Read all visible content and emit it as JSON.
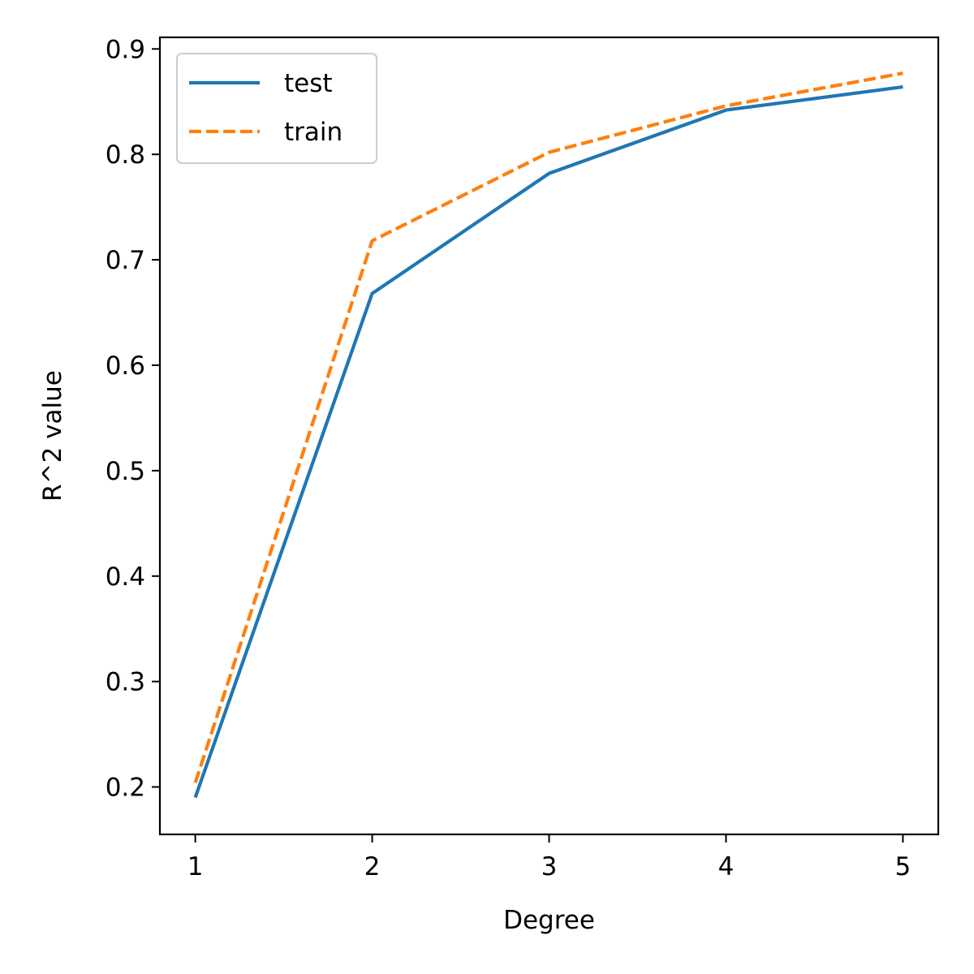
{
  "chart_data": {
    "type": "line",
    "title": "",
    "xlabel": "Degree",
    "ylabel": "R^2 value",
    "x": [
      1,
      2,
      3,
      4,
      5
    ],
    "xticks": [
      "1",
      "2",
      "3",
      "4",
      "5"
    ],
    "yticks": [
      "0.2",
      "0.3",
      "0.4",
      "0.5",
      "0.6",
      "0.7",
      "0.8",
      "0.9"
    ],
    "xlim": [
      0.8,
      5.2
    ],
    "ylim": [
      0.155,
      0.911
    ],
    "grid": false,
    "legend_position": "top-left",
    "series": [
      {
        "name": "test",
        "values": [
          0.19,
          0.668,
          0.782,
          0.842,
          0.864
        ],
        "color": "#1f77b4",
        "style": "solid"
      },
      {
        "name": "train",
        "values": [
          0.204,
          0.718,
          0.802,
          0.846,
          0.877
        ],
        "color": "#ff7f0e",
        "style": "dashed"
      }
    ]
  }
}
